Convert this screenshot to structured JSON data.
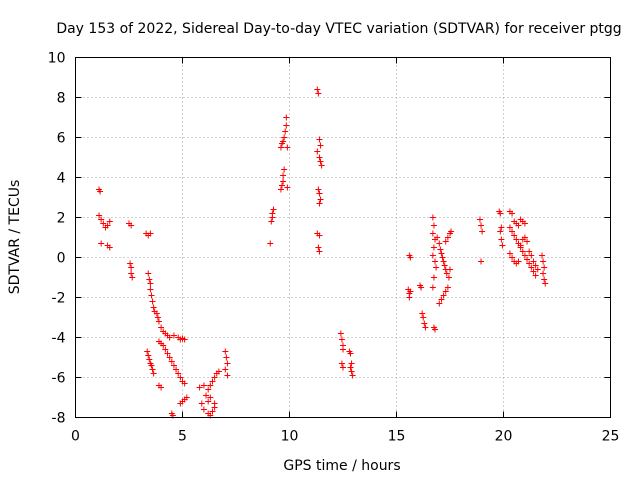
{
  "chart_data": {
    "type": "scatter",
    "title": "Day 153 of 2022, Sidereal Day-to-day VTEC variation (SDTVAR) for receiver ptgg",
    "xlabel": "GPS time / hours",
    "ylabel": "SDTVAR / TECUs",
    "xlim": [
      0,
      25
    ],
    "ylim": [
      -8,
      10
    ],
    "xticks": [
      0,
      5,
      10,
      15,
      20,
      25
    ],
    "yticks": [
      -8,
      -6,
      -4,
      -2,
      0,
      2,
      4,
      6,
      8,
      10
    ],
    "grid": true,
    "marker": "+",
    "series": [
      {
        "name": "SDTVAR",
        "color": "#ff0000",
        "points": [
          [
            1.1,
            3.4
          ],
          [
            1.15,
            3.3
          ],
          [
            1.1,
            2.1
          ],
          [
            1.2,
            1.9
          ],
          [
            1.3,
            1.7
          ],
          [
            1.4,
            1.5
          ],
          [
            1.5,
            1.6
          ],
          [
            1.6,
            1.8
          ],
          [
            1.5,
            0.6
          ],
          [
            1.6,
            0.5
          ],
          [
            1.2,
            0.7
          ],
          [
            2.5,
            1.7
          ],
          [
            2.6,
            1.6
          ],
          [
            2.55,
            -0.3
          ],
          [
            2.6,
            -0.5
          ],
          [
            2.6,
            -0.8
          ],
          [
            2.65,
            -1.0
          ],
          [
            3.3,
            1.2
          ],
          [
            3.4,
            1.1
          ],
          [
            3.5,
            1.2
          ],
          [
            3.4,
            -0.8
          ],
          [
            3.45,
            -1.1
          ],
          [
            3.5,
            -1.3
          ],
          [
            3.5,
            -1.6
          ],
          [
            3.55,
            -1.9
          ],
          [
            3.6,
            -2.2
          ],
          [
            3.65,
            -2.5
          ],
          [
            3.7,
            -2.7
          ],
          [
            3.35,
            -4.7
          ],
          [
            3.4,
            -4.9
          ],
          [
            3.45,
            -5.1
          ],
          [
            3.5,
            -5.3
          ],
          [
            3.55,
            -5.4
          ],
          [
            3.6,
            -5.6
          ],
          [
            3.65,
            -5.8
          ],
          [
            3.8,
            -2.8
          ],
          [
            3.85,
            -3.0
          ],
          [
            3.9,
            -3.2
          ],
          [
            4.0,
            -3.5
          ],
          [
            4.1,
            -3.7
          ],
          [
            4.2,
            -3.8
          ],
          [
            4.3,
            -3.9
          ],
          [
            4.4,
            -4.0
          ],
          [
            3.9,
            -4.2
          ],
          [
            4.0,
            -4.3
          ],
          [
            4.1,
            -4.4
          ],
          [
            4.2,
            -4.6
          ],
          [
            4.3,
            -4.8
          ],
          [
            4.4,
            -5.0
          ],
          [
            4.5,
            -5.2
          ],
          [
            4.6,
            -5.4
          ],
          [
            4.7,
            -5.6
          ],
          [
            4.8,
            -5.8
          ],
          [
            4.9,
            -6.0
          ],
          [
            5.0,
            -6.2
          ],
          [
            5.1,
            -6.3
          ],
          [
            3.9,
            -6.4
          ],
          [
            4.0,
            -6.5
          ],
          [
            4.5,
            -7.8
          ],
          [
            4.55,
            -7.9
          ],
          [
            4.6,
            -3.9
          ],
          [
            4.8,
            -4.0
          ],
          [
            4.9,
            -4.1
          ],
          [
            5.0,
            -4.05
          ],
          [
            5.1,
            -4.1
          ],
          [
            4.9,
            -7.3
          ],
          [
            5.0,
            -7.2
          ],
          [
            5.1,
            -7.1
          ],
          [
            5.2,
            -7.0
          ],
          [
            5.8,
            -6.5
          ],
          [
            6.0,
            -6.4
          ],
          [
            5.9,
            -7.3
          ],
          [
            6.0,
            -7.6
          ],
          [
            6.2,
            -7.8
          ],
          [
            6.3,
            -7.9
          ],
          [
            6.4,
            -7.7
          ],
          [
            6.5,
            -7.5
          ],
          [
            6.1,
            -6.9
          ],
          [
            6.2,
            -6.6
          ],
          [
            6.3,
            -6.4
          ],
          [
            6.4,
            -6.2
          ],
          [
            6.5,
            -6.0
          ],
          [
            6.6,
            -5.8
          ],
          [
            6.7,
            -5.7
          ],
          [
            6.2,
            -7.2
          ],
          [
            6.3,
            -7.0
          ],
          [
            6.5,
            -7.3
          ],
          [
            7.0,
            -4.7
          ],
          [
            7.05,
            -5.0
          ],
          [
            7.1,
            -5.3
          ],
          [
            7.0,
            -5.6
          ],
          [
            7.1,
            -5.9
          ],
          [
            9.1,
            0.7
          ],
          [
            9.15,
            1.8
          ],
          [
            9.2,
            2.0
          ],
          [
            9.2,
            2.2
          ],
          [
            9.25,
            2.4
          ],
          [
            9.6,
            3.4
          ],
          [
            9.65,
            3.6
          ],
          [
            9.7,
            3.8
          ],
          [
            9.7,
            4.1
          ],
          [
            9.75,
            4.4
          ],
          [
            9.6,
            5.5
          ],
          [
            9.65,
            5.7
          ],
          [
            9.7,
            5.8
          ],
          [
            9.75,
            6.0
          ],
          [
            9.8,
            6.3
          ],
          [
            9.85,
            6.6
          ],
          [
            9.85,
            7.0
          ],
          [
            9.9,
            5.5
          ],
          [
            9.9,
            3.5
          ],
          [
            11.3,
            8.4
          ],
          [
            11.35,
            8.2
          ],
          [
            11.4,
            5.9
          ],
          [
            11.45,
            5.6
          ],
          [
            11.3,
            5.3
          ],
          [
            11.4,
            5.0
          ],
          [
            11.45,
            4.8
          ],
          [
            11.5,
            4.6
          ],
          [
            11.35,
            3.4
          ],
          [
            11.4,
            3.2
          ],
          [
            11.45,
            2.9
          ],
          [
            11.4,
            2.7
          ],
          [
            11.3,
            1.2
          ],
          [
            11.4,
            1.1
          ],
          [
            11.35,
            0.5
          ],
          [
            11.4,
            0.3
          ],
          [
            12.4,
            -3.8
          ],
          [
            12.45,
            -4.1
          ],
          [
            12.5,
            -4.4
          ],
          [
            12.5,
            -4.6
          ],
          [
            12.45,
            -5.3
          ],
          [
            12.5,
            -5.5
          ],
          [
            12.8,
            -4.7
          ],
          [
            12.85,
            -4.8
          ],
          [
            12.9,
            -5.3
          ],
          [
            12.85,
            -5.5
          ],
          [
            12.9,
            -5.7
          ],
          [
            12.95,
            -5.9
          ],
          [
            15.6,
            0.1
          ],
          [
            15.65,
            0.0
          ],
          [
            15.55,
            -1.6
          ],
          [
            15.6,
            -1.8
          ],
          [
            15.6,
            -2.0
          ],
          [
            15.65,
            -1.7
          ],
          [
            16.1,
            -1.4
          ],
          [
            16.15,
            -1.5
          ],
          [
            16.2,
            -2.8
          ],
          [
            16.25,
            -3.0
          ],
          [
            16.3,
            -3.3
          ],
          [
            16.35,
            -3.5
          ],
          [
            16.7,
            2.0
          ],
          [
            16.75,
            1.6
          ],
          [
            16.7,
            1.2
          ],
          [
            16.8,
            0.9
          ],
          [
            16.75,
            0.5
          ],
          [
            16.7,
            0.1
          ],
          [
            16.8,
            -0.2
          ],
          [
            16.85,
            -0.5
          ],
          [
            16.75,
            -1.0
          ],
          [
            16.7,
            -1.5
          ],
          [
            16.75,
            -3.5
          ],
          [
            16.8,
            -3.6
          ],
          [
            16.9,
            1.0
          ],
          [
            17.0,
            0.7
          ],
          [
            17.05,
            0.4
          ],
          [
            17.1,
            0.2
          ],
          [
            17.15,
            0.0
          ],
          [
            17.2,
            -0.2
          ],
          [
            17.25,
            -0.4
          ],
          [
            17.3,
            -0.6
          ],
          [
            17.35,
            -0.8
          ],
          [
            17.0,
            -2.3
          ],
          [
            17.1,
            -2.1
          ],
          [
            17.2,
            -1.9
          ],
          [
            17.3,
            -1.7
          ],
          [
            17.4,
            -1.5
          ],
          [
            17.45,
            -1.0
          ],
          [
            17.5,
            -0.6
          ],
          [
            17.3,
            0.8
          ],
          [
            17.4,
            1.0
          ],
          [
            17.5,
            1.2
          ],
          [
            17.55,
            1.3
          ],
          [
            18.9,
            1.9
          ],
          [
            18.95,
            1.6
          ],
          [
            19.0,
            1.3
          ],
          [
            18.95,
            -0.2
          ],
          [
            19.8,
            2.3
          ],
          [
            19.85,
            2.2
          ],
          [
            19.9,
            1.5
          ],
          [
            19.85,
            1.3
          ],
          [
            19.9,
            0.9
          ],
          [
            19.95,
            0.6
          ],
          [
            20.3,
            2.3
          ],
          [
            20.4,
            2.2
          ],
          [
            20.5,
            1.8
          ],
          [
            20.6,
            1.7
          ],
          [
            20.7,
            1.6
          ],
          [
            20.8,
            1.9
          ],
          [
            20.9,
            1.8
          ],
          [
            21.0,
            1.7
          ],
          [
            20.3,
            1.5
          ],
          [
            20.4,
            1.3
          ],
          [
            20.5,
            1.1
          ],
          [
            20.6,
            0.9
          ],
          [
            20.7,
            0.7
          ],
          [
            20.8,
            0.5
          ],
          [
            20.9,
            0.3
          ],
          [
            21.0,
            0.1
          ],
          [
            21.1,
            -0.1
          ],
          [
            21.2,
            -0.3
          ],
          [
            21.3,
            -0.5
          ],
          [
            21.4,
            -0.7
          ],
          [
            21.5,
            -0.9
          ],
          [
            20.3,
            0.2
          ],
          [
            20.4,
            0.0
          ],
          [
            20.5,
            -0.2
          ],
          [
            20.6,
            -0.3
          ],
          [
            20.7,
            -0.2
          ],
          [
            20.8,
            0.6
          ],
          [
            20.9,
            0.9
          ],
          [
            21.0,
            1.0
          ],
          [
            21.1,
            0.8
          ],
          [
            21.2,
            0.3
          ],
          [
            21.3,
            0.1
          ],
          [
            21.4,
            -0.2
          ],
          [
            21.5,
            -0.4
          ],
          [
            21.6,
            -0.6
          ],
          [
            21.8,
            0.1
          ],
          [
            21.85,
            -0.2
          ],
          [
            21.9,
            -0.5
          ],
          [
            21.85,
            -0.8
          ],
          [
            21.9,
            -1.1
          ],
          [
            21.95,
            -1.3
          ]
        ]
      }
    ]
  }
}
